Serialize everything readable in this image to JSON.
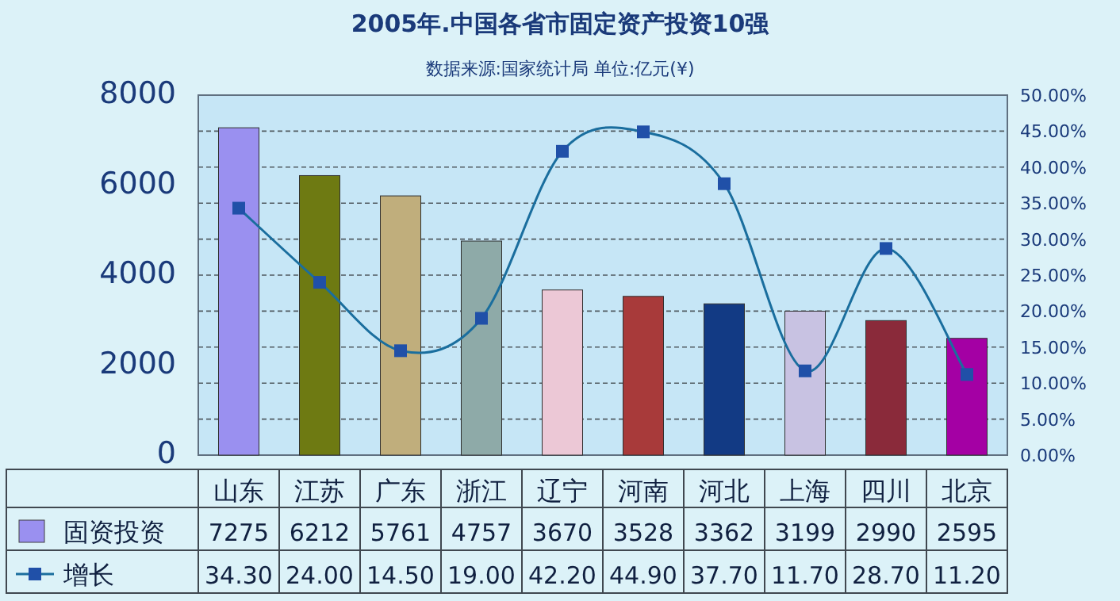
{
  "chart_data": {
    "type": "bar",
    "title": "2005年.中国各省市固定资产投资10强",
    "subtitle": "数据来源:国家统计局  单位:亿元(¥)",
    "categories": [
      "山东",
      "江苏",
      "广东",
      "浙江",
      "辽宁",
      "河南",
      "河北",
      "上海",
      "四川",
      "北京"
    ],
    "series": [
      {
        "name": "固资投资",
        "colors": [
          "#9a90f0",
          "#6e7a12",
          "#c0ae7c",
          "#8eaaa8",
          "#ecc8d6",
          "#a83a3a",
          "#123a84",
          "#c8c2e2",
          "#8a2a3a",
          "#a400a4"
        ],
        "values": [
          7275,
          6212,
          5761,
          4757,
          3670,
          3528,
          3362,
          3199,
          2990,
          2595
        ],
        "value_labels": [
          "7275",
          "6212",
          "5761",
          "4757",
          "3670",
          "3528",
          "3362",
          "3199",
          "2990",
          "2595"
        ]
      },
      {
        "name": "增长",
        "type": "line",
        "axis": "y2",
        "color": "#1a6e9e",
        "values": [
          34.3,
          24.0,
          14.5,
          19.0,
          42.2,
          44.9,
          37.7,
          11.7,
          28.7,
          11.2
        ],
        "value_labels": [
          "34.30",
          "24.00",
          "14.50",
          "19.00",
          "42.20",
          "44.90",
          "37.70",
          "11.70",
          "28.70",
          "11.20"
        ]
      }
    ],
    "ylim": [
      0,
      8000
    ],
    "yticks": [
      0,
      2000,
      4000,
      6000,
      8000
    ],
    "y2lim": [
      0,
      50
    ],
    "y2ticks": [
      {
        "value": 0,
        "label": "0.00%"
      },
      {
        "value": 5,
        "label": "5.00%"
      },
      {
        "value": 10,
        "label": "10.00%"
      },
      {
        "value": 15,
        "label": "15.00%"
      },
      {
        "value": 20,
        "label": "20.00%"
      },
      {
        "value": 25,
        "label": "25.00%"
      },
      {
        "value": 30,
        "label": "30.00%"
      },
      {
        "value": 35,
        "label": "35.00%"
      },
      {
        "value": 40,
        "label": "40.00%"
      },
      {
        "value": 45,
        "label": "45.00%"
      },
      {
        "value": 50,
        "label": "50.00%"
      }
    ],
    "grid": true,
    "marker": "square",
    "legend": "bottom"
  }
}
